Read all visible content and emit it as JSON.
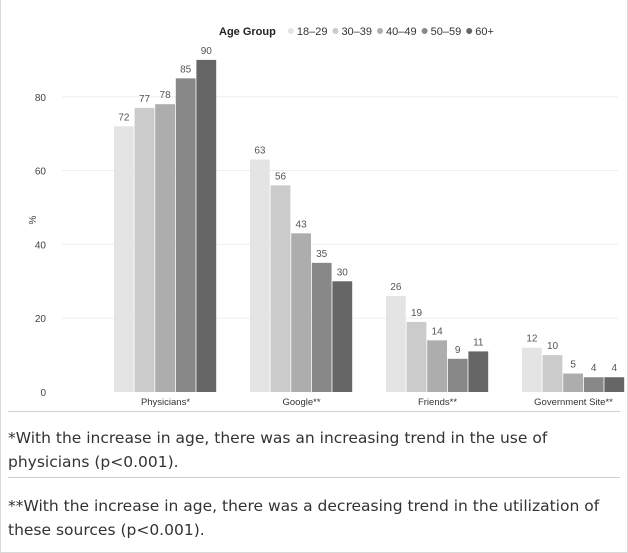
{
  "chart_data": {
    "type": "bar",
    "title": "",
    "xlabel": "",
    "ylabel": "%",
    "ylim": [
      0,
      95
    ],
    "yticks": [
      0,
      20,
      40,
      60,
      80
    ],
    "grid": true,
    "legend_title": "Age Group",
    "legend_position": "top",
    "categories": [
      "Physicians*",
      "Google**",
      "Friends**",
      "Government Site**"
    ],
    "series": [
      {
        "name": "18–29",
        "color": "#e4e4e4",
        "values": [
          72,
          63,
          26,
          12
        ]
      },
      {
        "name": "30–39",
        "color": "#cbcbcb",
        "values": [
          77,
          56,
          19,
          10
        ]
      },
      {
        "name": "40–49",
        "color": "#adadad",
        "values": [
          78,
          43,
          14,
          5
        ]
      },
      {
        "name": "50–59",
        "color": "#888888",
        "values": [
          85,
          35,
          9,
          4
        ]
      },
      {
        "name": "60+",
        "color": "#666666",
        "values": [
          90,
          30,
          11,
          4
        ]
      }
    ]
  },
  "notes": {
    "note1": "*With the increase in age, there was an increasing trend in the use of physicians (p<0.001).",
    "note2": "**With the increase in age, there was a decreasing trend in the utilization of these sources (p<0.001)."
  }
}
